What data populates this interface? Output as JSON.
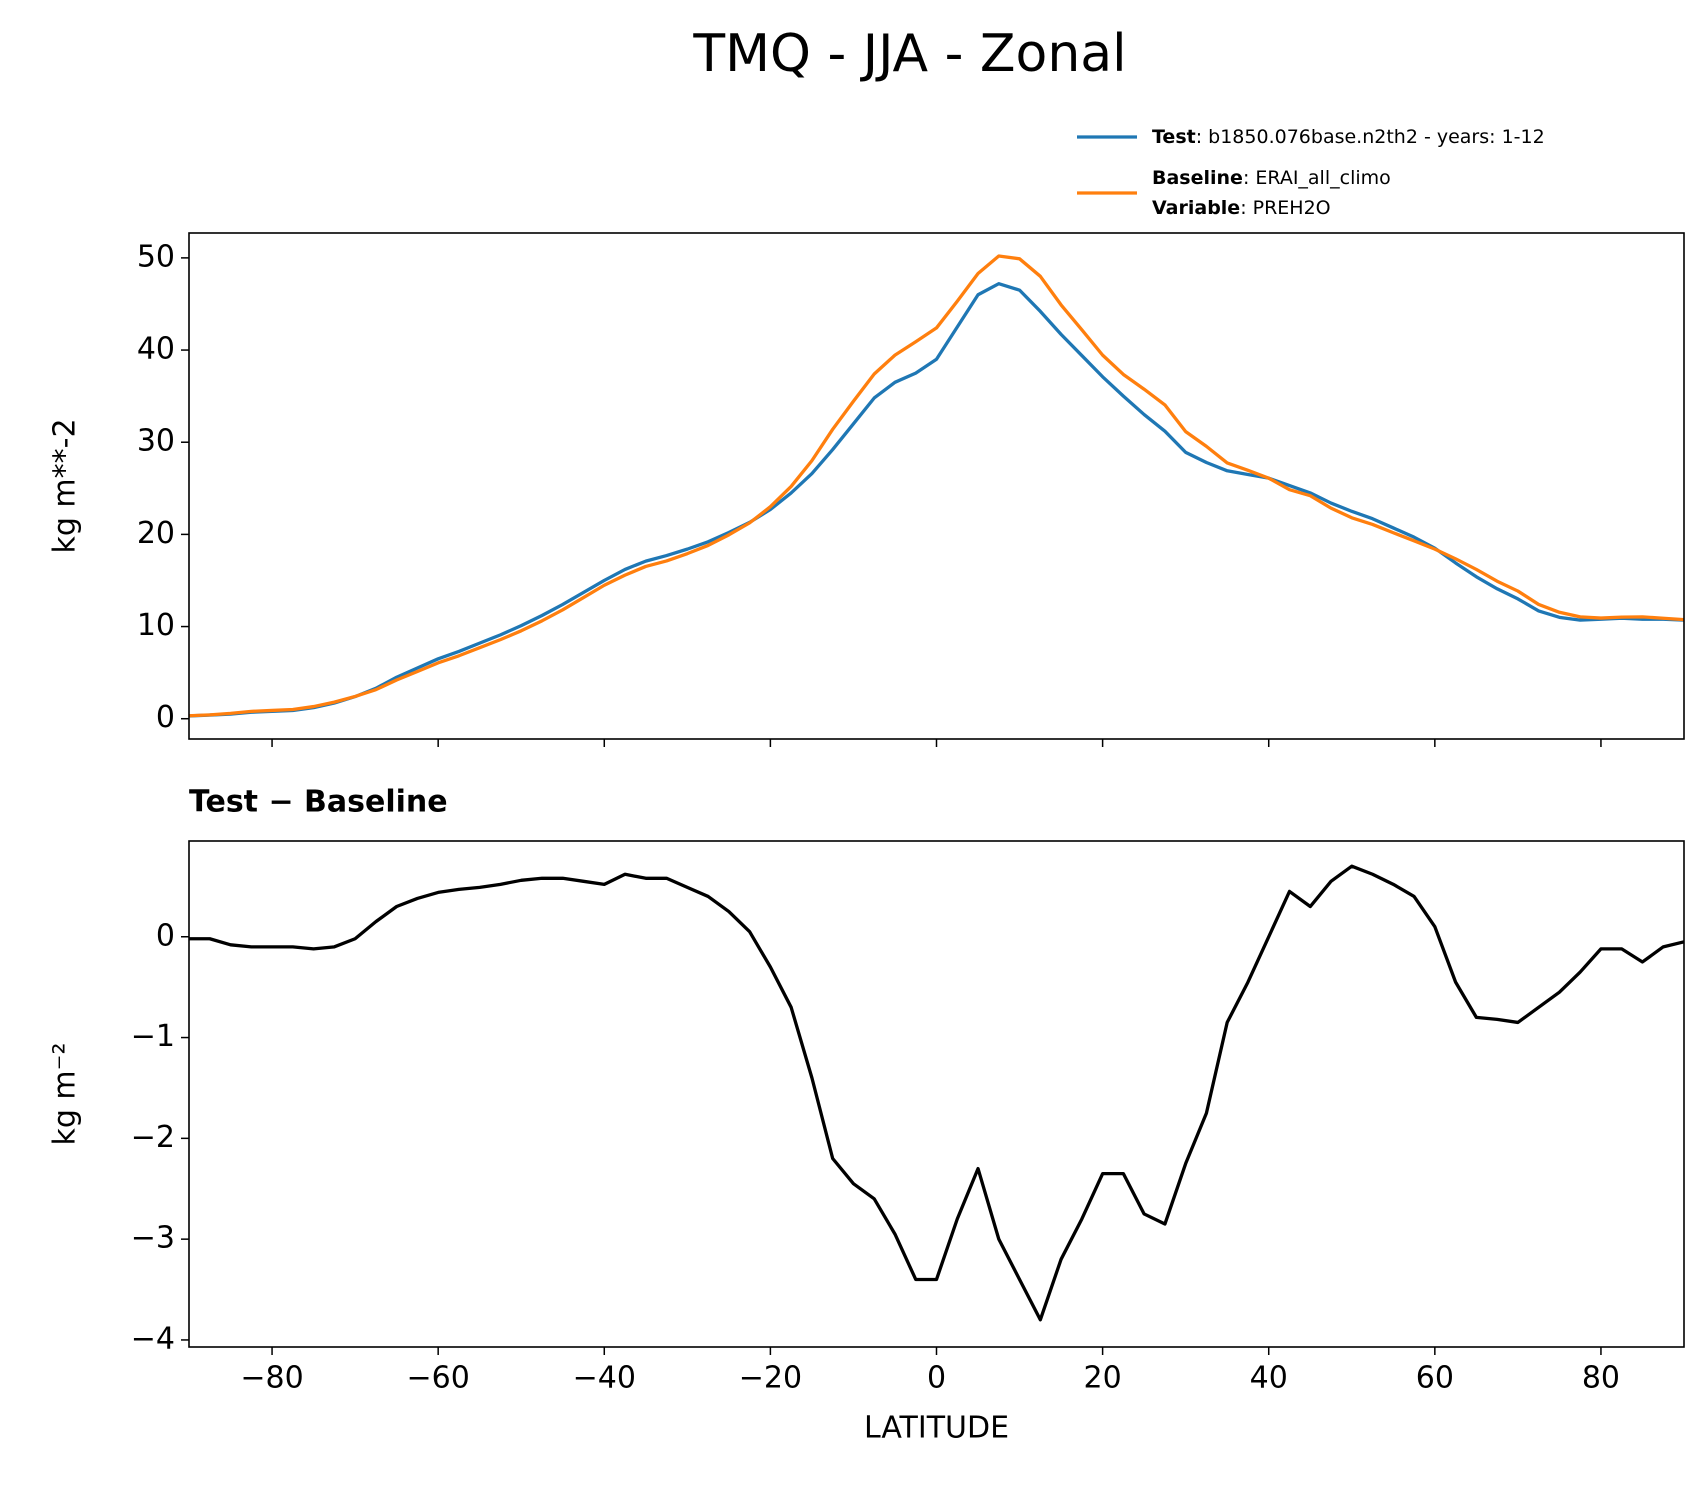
{
  "chart_data": [
    {
      "type": "line",
      "title": "TMQ - JJA - Zonal",
      "ylabel": "kg m**-2",
      "x": [
        -90,
        -87.5,
        -85,
        -82.5,
        -80,
        -77.5,
        -75,
        -72.5,
        -70,
        -67.5,
        -65,
        -62.5,
        -60,
        -57.5,
        -55,
        -52.5,
        -50,
        -47.5,
        -45,
        -42.5,
        -40,
        -37.5,
        -35,
        -32.5,
        -30,
        -27.5,
        -25,
        -22.5,
        -20,
        -17.5,
        -15,
        -12.5,
        -10,
        -7.5,
        -5,
        -2.5,
        0,
        2.5,
        5,
        7.5,
        10,
        12.5,
        15,
        17.5,
        20,
        22.5,
        25,
        27.5,
        30,
        32.5,
        35,
        37.5,
        40,
        42.5,
        45,
        47.5,
        50,
        52.5,
        55,
        57.5,
        60,
        62.5,
        65,
        67.5,
        70,
        72.5,
        75,
        77.5,
        80,
        82.5,
        85,
        87.5,
        90
      ],
      "series": [
        {
          "name": "Test",
          "legend_text": ": b1850.076base.n2th2 - years: 1-12",
          "color": "#1f77b4",
          "values": [
            0.3,
            0.4,
            0.5,
            0.7,
            0.8,
            0.9,
            1.2,
            1.7,
            2.4,
            3.3,
            4.5,
            5.5,
            6.5,
            7.3,
            8.2,
            9.1,
            10.1,
            11.2,
            12.4,
            13.7,
            15.0,
            16.2,
            17.1,
            17.7,
            18.4,
            19.2,
            20.2,
            21.3,
            22.7,
            24.5,
            26.6,
            29.2,
            32.0,
            34.8,
            36.5,
            37.5,
            39.0,
            42.5,
            46.0,
            47.2,
            46.5,
            44.2,
            41.7,
            39.4,
            37.1,
            35.0,
            33.0,
            31.2,
            28.9,
            27.8,
            26.9,
            26.5,
            26.1,
            25.3,
            24.5,
            23.4,
            22.5,
            21.7,
            20.7,
            19.7,
            18.5,
            16.9,
            15.4,
            14.1,
            13.0,
            11.7,
            11.0,
            10.7,
            10.8,
            10.9,
            10.8,
            10.8,
            10.7
          ]
        },
        {
          "name": "Baseline",
          "legend_text": ": ERAI_all_climo",
          "legend_name2": "Variable",
          "legend_text2": ": PREH2O",
          "color": "#ff7f0e",
          "values": [
            0.32,
            0.42,
            0.58,
            0.8,
            0.9,
            1.0,
            1.32,
            1.8,
            2.42,
            3.15,
            4.2,
            5.12,
            6.06,
            6.83,
            7.71,
            8.58,
            9.54,
            10.62,
            11.82,
            13.15,
            14.48,
            15.58,
            16.52,
            17.12,
            17.91,
            18.8,
            19.95,
            21.25,
            23.0,
            25.2,
            28.0,
            31.4,
            34.45,
            37.4,
            39.45,
            40.9,
            42.4,
            45.3,
            48.3,
            50.2,
            49.9,
            48.0,
            44.9,
            42.2,
            39.45,
            37.35,
            35.75,
            34.05,
            31.15,
            29.55,
            27.75,
            26.95,
            26.1,
            24.85,
            24.2,
            22.85,
            21.8,
            21.08,
            20.18,
            19.3,
            18.4,
            17.35,
            16.2,
            14.92,
            13.85,
            12.4,
            11.55,
            11.05,
            10.92,
            11.02,
            11.05,
            10.9,
            10.75
          ]
        }
      ],
      "xlim": [
        -90,
        90
      ],
      "xticks": [
        -80,
        -60,
        -40,
        -20,
        0,
        20,
        40,
        60,
        80
      ],
      "ylim": [
        -2.2,
        52.7
      ],
      "yticks": [
        0,
        10,
        20,
        30,
        40,
        50
      ]
    },
    {
      "type": "line",
      "title": "Test − Baseline",
      "ylabel": "kg m⁻²",
      "xlabel": "LATITUDE",
      "x": [
        -90,
        -87.5,
        -85,
        -82.5,
        -80,
        -77.5,
        -75,
        -72.5,
        -70,
        -67.5,
        -65,
        -62.5,
        -60,
        -57.5,
        -55,
        -52.5,
        -50,
        -47.5,
        -45,
        -42.5,
        -40,
        -37.5,
        -35,
        -32.5,
        -30,
        -27.5,
        -25,
        -22.5,
        -20,
        -17.5,
        -15,
        -12.5,
        -10,
        -7.5,
        -5,
        -2.5,
        0,
        2.5,
        5,
        7.5,
        10,
        12.5,
        15,
        17.5,
        20,
        22.5,
        25,
        27.5,
        30,
        32.5,
        35,
        37.5,
        40,
        42.5,
        45,
        47.5,
        50,
        52.5,
        55,
        57.5,
        60,
        62.5,
        65,
        67.5,
        70,
        72.5,
        75,
        77.5,
        80,
        82.5,
        85,
        87.5,
        90
      ],
      "series": [
        {
          "color": "#000000",
          "values": [
            -0.02,
            -0.02,
            -0.08,
            -0.1,
            -0.1,
            -0.1,
            -0.12,
            -0.1,
            -0.02,
            0.15,
            0.3,
            0.38,
            0.44,
            0.47,
            0.49,
            0.52,
            0.56,
            0.58,
            0.58,
            0.55,
            0.52,
            0.62,
            0.58,
            0.58,
            0.49,
            0.4,
            0.25,
            0.05,
            -0.3,
            -0.7,
            -1.4,
            -2.2,
            -2.45,
            -2.6,
            -2.95,
            -3.4,
            -3.4,
            -2.8,
            -2.3,
            -3.0,
            -3.4,
            -3.8,
            -3.2,
            -2.8,
            -2.35,
            -2.35,
            -2.75,
            -2.85,
            -2.25,
            -1.75,
            -0.85,
            -0.45,
            0,
            0.45,
            0.3,
            0.55,
            0.7,
            0.62,
            0.52,
            0.4,
            0.1,
            -0.45,
            -0.8,
            -0.82,
            -0.85,
            -0.7,
            -0.55,
            -0.35,
            -0.12,
            -0.12,
            -0.25,
            -0.1,
            -0.05
          ]
        }
      ],
      "xlim": [
        -90,
        90
      ],
      "xticks": [
        {
          "value": -80,
          "label": "−80"
        },
        {
          "value": -60,
          "label": "−60"
        },
        {
          "value": -40,
          "label": "−40"
        },
        {
          "value": -20,
          "label": "−20"
        },
        0,
        20,
        40,
        60,
        80
      ],
      "ylim": [
        -4.07,
        0.95
      ],
      "yticks": [
        {
          "value": -4,
          "label": "−4"
        },
        {
          "value": -3,
          "label": "−3"
        },
        {
          "value": -2,
          "label": "−2"
        },
        {
          "value": -1,
          "label": "−1"
        },
        0
      ]
    }
  ]
}
